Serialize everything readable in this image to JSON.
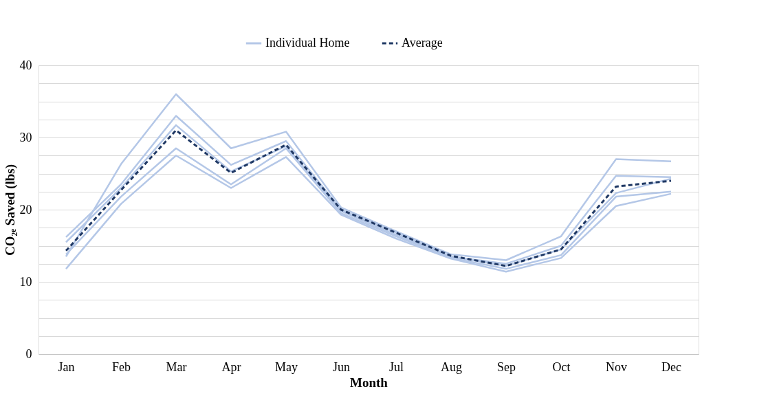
{
  "chart_data": {
    "type": "line",
    "xlabel": "Month",
    "ylabel": "CO₂ₑ Saved (lbs)",
    "categories": [
      "Jan",
      "Feb",
      "Mar",
      "Apr",
      "May",
      "Jun",
      "Jul",
      "Aug",
      "Sep",
      "Oct",
      "Nov",
      "Dec"
    ],
    "series": [
      {
        "name": "Individual Home",
        "color": "#b4c7e7",
        "line_style": "solid",
        "values": [
          13.5,
          26.3,
          36,
          28.5,
          30.8,
          20.3,
          17,
          13.8,
          13,
          16.3,
          27,
          26.7
        ]
      },
      {
        "color": "#b4c7e7",
        "line_style": "solid",
        "values": [
          16.2,
          23.5,
          33,
          26.2,
          29.5,
          20,
          16.8,
          13.5,
          12.5,
          15,
          24.7,
          24.5
        ]
      },
      {
        "color": "#b4c7e7",
        "line_style": "solid",
        "values": [
          15.5,
          23,
          31.7,
          25.3,
          28.8,
          19.8,
          16.5,
          13.5,
          12.2,
          14.5,
          22.3,
          24.3
        ]
      },
      {
        "color": "#b4c7e7",
        "line_style": "solid",
        "values": [
          13.8,
          21.8,
          28.5,
          23.5,
          28.5,
          19.5,
          16.3,
          13.3,
          11.8,
          13.7,
          21.8,
          22.5
        ]
      },
      {
        "color": "#b4c7e7",
        "line_style": "solid",
        "values": [
          11.8,
          20.8,
          27.5,
          23,
          27.3,
          19.3,
          16,
          13.2,
          11.4,
          13.3,
          20.5,
          22.2
        ]
      },
      {
        "name": "Average",
        "color": "#1f3864",
        "line_style": "dashed",
        "values": [
          14.3,
          22.7,
          31,
          25.1,
          29,
          20,
          16.8,
          13.6,
          12.2,
          14.5,
          23.2,
          24
        ]
      }
    ],
    "ylim": [
      0,
      40
    ],
    "yticks": [
      0,
      {
        "value": 2.5,
        "label": null
      },
      {
        "value": 5,
        "label": null
      },
      {
        "value": 7.5,
        "label": null
      },
      10,
      {
        "value": 12.5,
        "label": null
      },
      {
        "value": 15,
        "label": null
      },
      {
        "value": 17.5,
        "label": null
      },
      20,
      {
        "value": 22.5,
        "label": null
      },
      {
        "value": 25,
        "label": null
      },
      {
        "value": 27.5,
        "label": null
      },
      30,
      {
        "value": 32.5,
        "label": null
      },
      {
        "value": 35,
        "label": null
      },
      {
        "value": 37.5,
        "label": null
      },
      40
    ],
    "grid": "y",
    "legend": "top",
    "marker": "none"
  }
}
